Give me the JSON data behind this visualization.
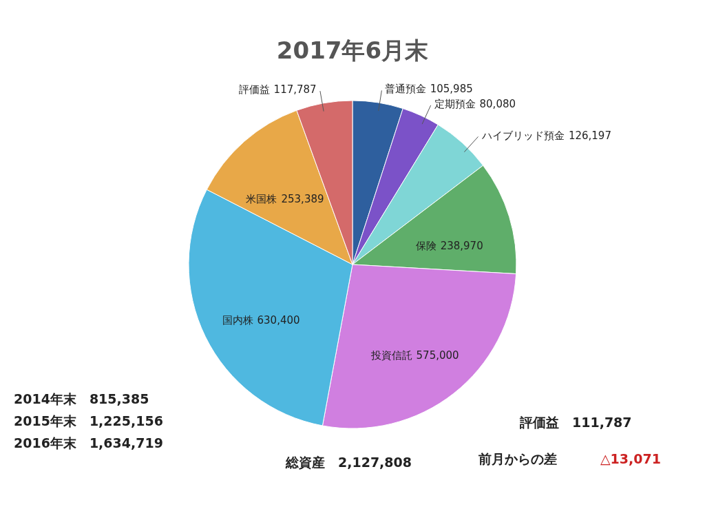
{
  "chart_data": {
    "type": "pie",
    "title": "2017年6月末",
    "categories": [
      "普通預金",
      "定期預金",
      "ハイブリッド預金",
      "保険",
      "投資信託",
      "国内株",
      "米国株",
      "評価益"
    ],
    "values": [
      105985,
      80080,
      126197,
      238970,
      575000,
      630400,
      253389,
      117787
    ],
    "colors": [
      "#2e5f9e",
      "#7b52c8",
      "#7fd6d6",
      "#5fae6a",
      "#d07fe0",
      "#4fb8e0",
      "#e8a848",
      "#d46a6a"
    ],
    "value_labels": [
      "105,985",
      "80,080",
      "126,197",
      "238,970",
      "575,000",
      "630,400",
      "253,389",
      "117,787"
    ],
    "annotations": [
      "2014年末　815,385",
      "2015年末　1,225,156",
      "2016年末　1,634,719",
      "総資産　2,127,808",
      "評価益　111,787",
      "前月からの差",
      "△13,071"
    ]
  }
}
